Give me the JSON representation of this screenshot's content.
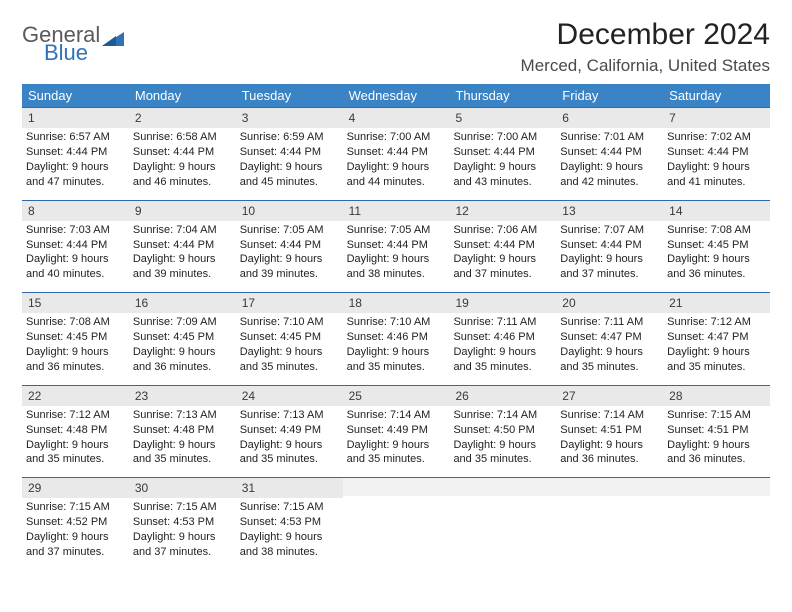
{
  "logo": {
    "word1": "General",
    "word2": "Blue"
  },
  "title": "December 2024",
  "location": "Merced, California, United States",
  "colors": {
    "header_bg": "#3a83c5",
    "header_text": "#ffffff",
    "week_border": "#2f6aa8",
    "daynum_bg": "#e9e9e9",
    "logo_gray": "#5a5a5a",
    "logo_blue": "#2f72b7"
  },
  "dow": [
    "Sunday",
    "Monday",
    "Tuesday",
    "Wednesday",
    "Thursday",
    "Friday",
    "Saturday"
  ],
  "weeks": [
    [
      {
        "n": "1",
        "sr": "Sunrise: 6:57 AM",
        "ss": "Sunset: 4:44 PM",
        "d1": "Daylight: 9 hours",
        "d2": "and 47 minutes."
      },
      {
        "n": "2",
        "sr": "Sunrise: 6:58 AM",
        "ss": "Sunset: 4:44 PM",
        "d1": "Daylight: 9 hours",
        "d2": "and 46 minutes."
      },
      {
        "n": "3",
        "sr": "Sunrise: 6:59 AM",
        "ss": "Sunset: 4:44 PM",
        "d1": "Daylight: 9 hours",
        "d2": "and 45 minutes."
      },
      {
        "n": "4",
        "sr": "Sunrise: 7:00 AM",
        "ss": "Sunset: 4:44 PM",
        "d1": "Daylight: 9 hours",
        "d2": "and 44 minutes."
      },
      {
        "n": "5",
        "sr": "Sunrise: 7:00 AM",
        "ss": "Sunset: 4:44 PM",
        "d1": "Daylight: 9 hours",
        "d2": "and 43 minutes."
      },
      {
        "n": "6",
        "sr": "Sunrise: 7:01 AM",
        "ss": "Sunset: 4:44 PM",
        "d1": "Daylight: 9 hours",
        "d2": "and 42 minutes."
      },
      {
        "n": "7",
        "sr": "Sunrise: 7:02 AM",
        "ss": "Sunset: 4:44 PM",
        "d1": "Daylight: 9 hours",
        "d2": "and 41 minutes."
      }
    ],
    [
      {
        "n": "8",
        "sr": "Sunrise: 7:03 AM",
        "ss": "Sunset: 4:44 PM",
        "d1": "Daylight: 9 hours",
        "d2": "and 40 minutes."
      },
      {
        "n": "9",
        "sr": "Sunrise: 7:04 AM",
        "ss": "Sunset: 4:44 PM",
        "d1": "Daylight: 9 hours",
        "d2": "and 39 minutes."
      },
      {
        "n": "10",
        "sr": "Sunrise: 7:05 AM",
        "ss": "Sunset: 4:44 PM",
        "d1": "Daylight: 9 hours",
        "d2": "and 39 minutes."
      },
      {
        "n": "11",
        "sr": "Sunrise: 7:05 AM",
        "ss": "Sunset: 4:44 PM",
        "d1": "Daylight: 9 hours",
        "d2": "and 38 minutes."
      },
      {
        "n": "12",
        "sr": "Sunrise: 7:06 AM",
        "ss": "Sunset: 4:44 PM",
        "d1": "Daylight: 9 hours",
        "d2": "and 37 minutes."
      },
      {
        "n": "13",
        "sr": "Sunrise: 7:07 AM",
        "ss": "Sunset: 4:44 PM",
        "d1": "Daylight: 9 hours",
        "d2": "and 37 minutes."
      },
      {
        "n": "14",
        "sr": "Sunrise: 7:08 AM",
        "ss": "Sunset: 4:45 PM",
        "d1": "Daylight: 9 hours",
        "d2": "and 36 minutes."
      }
    ],
    [
      {
        "n": "15",
        "sr": "Sunrise: 7:08 AM",
        "ss": "Sunset: 4:45 PM",
        "d1": "Daylight: 9 hours",
        "d2": "and 36 minutes."
      },
      {
        "n": "16",
        "sr": "Sunrise: 7:09 AM",
        "ss": "Sunset: 4:45 PM",
        "d1": "Daylight: 9 hours",
        "d2": "and 36 minutes."
      },
      {
        "n": "17",
        "sr": "Sunrise: 7:10 AM",
        "ss": "Sunset: 4:45 PM",
        "d1": "Daylight: 9 hours",
        "d2": "and 35 minutes."
      },
      {
        "n": "18",
        "sr": "Sunrise: 7:10 AM",
        "ss": "Sunset: 4:46 PM",
        "d1": "Daylight: 9 hours",
        "d2": "and 35 minutes."
      },
      {
        "n": "19",
        "sr": "Sunrise: 7:11 AM",
        "ss": "Sunset: 4:46 PM",
        "d1": "Daylight: 9 hours",
        "d2": "and 35 minutes."
      },
      {
        "n": "20",
        "sr": "Sunrise: 7:11 AM",
        "ss": "Sunset: 4:47 PM",
        "d1": "Daylight: 9 hours",
        "d2": "and 35 minutes."
      },
      {
        "n": "21",
        "sr": "Sunrise: 7:12 AM",
        "ss": "Sunset: 4:47 PM",
        "d1": "Daylight: 9 hours",
        "d2": "and 35 minutes."
      }
    ],
    [
      {
        "n": "22",
        "sr": "Sunrise: 7:12 AM",
        "ss": "Sunset: 4:48 PM",
        "d1": "Daylight: 9 hours",
        "d2": "and 35 minutes."
      },
      {
        "n": "23",
        "sr": "Sunrise: 7:13 AM",
        "ss": "Sunset: 4:48 PM",
        "d1": "Daylight: 9 hours",
        "d2": "and 35 minutes."
      },
      {
        "n": "24",
        "sr": "Sunrise: 7:13 AM",
        "ss": "Sunset: 4:49 PM",
        "d1": "Daylight: 9 hours",
        "d2": "and 35 minutes."
      },
      {
        "n": "25",
        "sr": "Sunrise: 7:14 AM",
        "ss": "Sunset: 4:49 PM",
        "d1": "Daylight: 9 hours",
        "d2": "and 35 minutes."
      },
      {
        "n": "26",
        "sr": "Sunrise: 7:14 AM",
        "ss": "Sunset: 4:50 PM",
        "d1": "Daylight: 9 hours",
        "d2": "and 35 minutes."
      },
      {
        "n": "27",
        "sr": "Sunrise: 7:14 AM",
        "ss": "Sunset: 4:51 PM",
        "d1": "Daylight: 9 hours",
        "d2": "and 36 minutes."
      },
      {
        "n": "28",
        "sr": "Sunrise: 7:15 AM",
        "ss": "Sunset: 4:51 PM",
        "d1": "Daylight: 9 hours",
        "d2": "and 36 minutes."
      }
    ],
    [
      {
        "n": "29",
        "sr": "Sunrise: 7:15 AM",
        "ss": "Sunset: 4:52 PM",
        "d1": "Daylight: 9 hours",
        "d2": "and 37 minutes."
      },
      {
        "n": "30",
        "sr": "Sunrise: 7:15 AM",
        "ss": "Sunset: 4:53 PM",
        "d1": "Daylight: 9 hours",
        "d2": "and 37 minutes."
      },
      {
        "n": "31",
        "sr": "Sunrise: 7:15 AM",
        "ss": "Sunset: 4:53 PM",
        "d1": "Daylight: 9 hours",
        "d2": "and 38 minutes."
      },
      {
        "empty": true
      },
      {
        "empty": true
      },
      {
        "empty": true
      },
      {
        "empty": true
      }
    ]
  ]
}
